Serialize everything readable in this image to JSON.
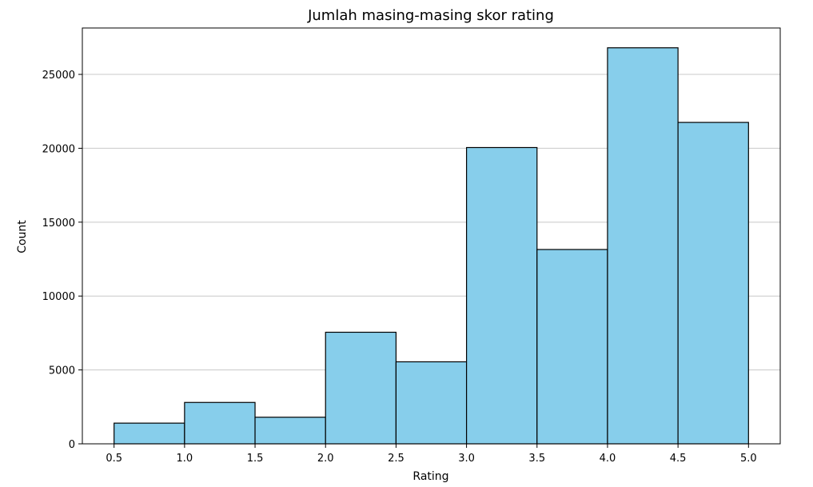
{
  "chart_data": {
    "type": "bar",
    "title": "Jumlah masing-masing skor rating",
    "xlabel": "Rating",
    "ylabel": "Count",
    "bins": [
      {
        "from": 0.5,
        "to": 1.0,
        "value": 1400
      },
      {
        "from": 1.0,
        "to": 1.5,
        "value": 2800
      },
      {
        "from": 1.5,
        "to": 2.0,
        "value": 1800
      },
      {
        "from": 2.0,
        "to": 2.5,
        "value": 7550
      },
      {
        "from": 2.5,
        "to": 3.0,
        "value": 5550
      },
      {
        "from": 3.0,
        "to": 3.5,
        "value": 20050
      },
      {
        "from": 3.5,
        "to": 4.0,
        "value": 13150
      },
      {
        "from": 4.0,
        "to": 4.5,
        "value": 26800
      },
      {
        "from": 4.5,
        "to": 5.0,
        "value": 21750
      }
    ],
    "xticks": [
      0.5,
      1.0,
      1.5,
      2.0,
      2.5,
      3.0,
      3.5,
      4.0,
      4.5,
      5.0
    ],
    "xtick_labels": [
      "0.5",
      "1.0",
      "1.5",
      "2.0",
      "2.5",
      "3.0",
      "3.5",
      "4.0",
      "4.5",
      "5.0"
    ],
    "yticks": [
      0,
      5000,
      10000,
      15000,
      20000,
      25000
    ],
    "ytick_labels": [
      "0",
      "5000",
      "10000",
      "15000",
      "20000",
      "25000"
    ],
    "xlim": [
      0.275,
      5.225
    ],
    "ylim": [
      0,
      28140
    ],
    "grid": {
      "y": true,
      "x": false
    },
    "colors": {
      "bar_fill": "#87ceeb",
      "bar_edge": "#000000",
      "grid": "#c8c8c8"
    }
  }
}
